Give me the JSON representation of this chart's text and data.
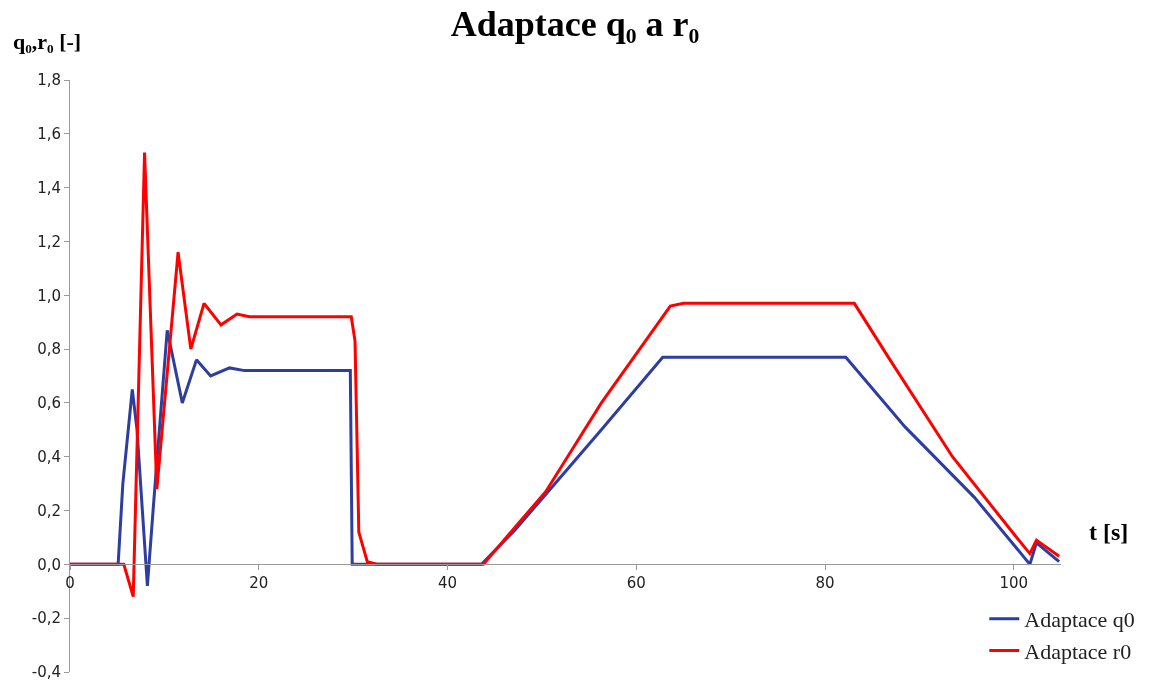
{
  "chart_data": {
    "type": "line",
    "title": "Adaptace q₀ a r₀",
    "xlabel": "t [s]",
    "ylabel": "q₀,r₀ [-]",
    "xlim": [
      0,
      105
    ],
    "xticks": [
      0,
      20,
      40,
      60,
      80,
      100
    ],
    "ylim": [
      -0.4,
      1.8
    ],
    "yticks": [
      {
        "value": -0.4,
        "label": "-0,4"
      },
      {
        "value": -0.2,
        "label": "-0,2"
      },
      {
        "value": 0,
        "label": "0,0"
      },
      {
        "value": 0.2,
        "label": "0,2"
      },
      {
        "value": 0.4,
        "label": "0,4"
      },
      {
        "value": 0.6,
        "label": "0,6"
      },
      {
        "value": 0.8,
        "label": "0,8"
      },
      {
        "value": 1.0,
        "label": "1,0"
      },
      {
        "value": 1.2,
        "label": "1,2"
      },
      {
        "value": 1.4,
        "label": "1,4"
      },
      {
        "value": 1.6,
        "label": "1,6"
      },
      {
        "value": 1.8,
        "label": "1,8"
      }
    ],
    "legend": "bottom right",
    "marker": "none",
    "line_style": "solid",
    "series": [
      {
        "name": "Adaptace q0",
        "color": "#2e3da0",
        "x": [
          0,
          5.1,
          5.6,
          6.6,
          7.1,
          8.2,
          8.8,
          10.3,
          11.9,
          13.4,
          14.9,
          16.9,
          18.5,
          29.7,
          29.9,
          43.6,
          47.2,
          50.4,
          56.3,
          62.8,
          64.5,
          82.2,
          88.5,
          95.8,
          100.3,
          101.7,
          102.4,
          104.8
        ],
        "values": [
          0,
          0,
          0.3,
          0.65,
          0.5,
          -0.08,
          0.2,
          0.87,
          0.6,
          0.76,
          0.7,
          0.73,
          0.72,
          0.72,
          0,
          0,
          0.13,
          0.26,
          0.5,
          0.77,
          0.77,
          0.77,
          0.51,
          0.25,
          0.06,
          0,
          0.08,
          0.01
        ]
      },
      {
        "name": "Adaptace r0",
        "color": "#ff0000",
        "x": [
          0,
          5.7,
          6.7,
          7.9,
          9.2,
          11.45,
          12.8,
          14.2,
          16.0,
          17.7,
          19,
          29.8,
          30.2,
          30.6,
          31.5,
          32.6,
          43.8,
          47.2,
          50.4,
          56.3,
          63.6,
          65,
          83.1,
          86.7,
          93.5,
          100.3,
          101.7,
          102.4,
          104.8
        ],
        "values": [
          0,
          0,
          -0.12,
          1.53,
          0.28,
          1.16,
          0.8,
          0.97,
          0.89,
          0.93,
          0.92,
          0.92,
          0.83,
          0.12,
          0.01,
          0,
          0,
          0.14,
          0.27,
          0.6,
          0.96,
          0.97,
          0.97,
          0.77,
          0.4,
          0.1,
          0.04,
          0.09,
          0.03
        ]
      }
    ]
  }
}
